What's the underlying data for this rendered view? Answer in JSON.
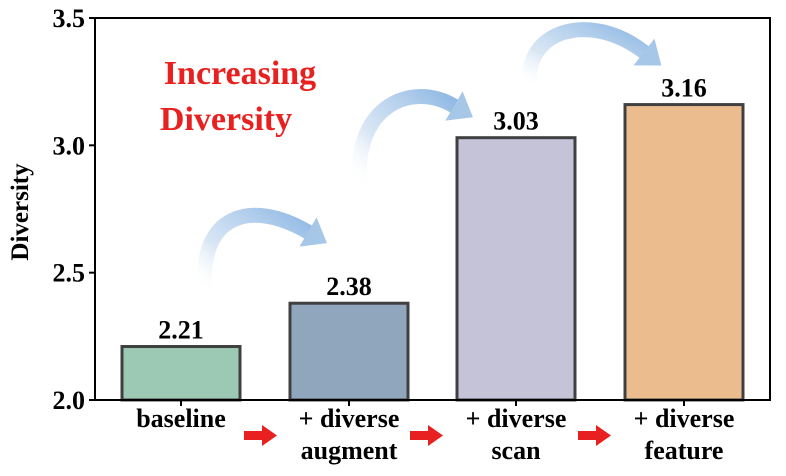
{
  "chart_data": {
    "type": "bar",
    "ylabel": "Diversity",
    "ylim": [
      2.0,
      3.5
    ],
    "yticks": [
      "2.0",
      "2.5",
      "3.0",
      "3.5"
    ],
    "categories": [
      [
        "baseline"
      ],
      [
        "+ diverse",
        "augment"
      ],
      [
        "+ diverse",
        "scan"
      ],
      [
        "+ diverse",
        "feature"
      ]
    ],
    "values": [
      2.21,
      2.38,
      3.03,
      3.16
    ],
    "value_labels": [
      "2.21",
      "2.38",
      "3.03",
      "3.16"
    ],
    "bar_colors": [
      "#9cc9b4",
      "#8fa6bd",
      "#c4c3d8",
      "#ebbd8e"
    ],
    "annotation": [
      "Increasing",
      "Diversity"
    ],
    "annotation_color": "#e8201f",
    "arrow_color": "#e8201f",
    "curved_arrow_color": "#a7c7e8",
    "grid": false
  }
}
